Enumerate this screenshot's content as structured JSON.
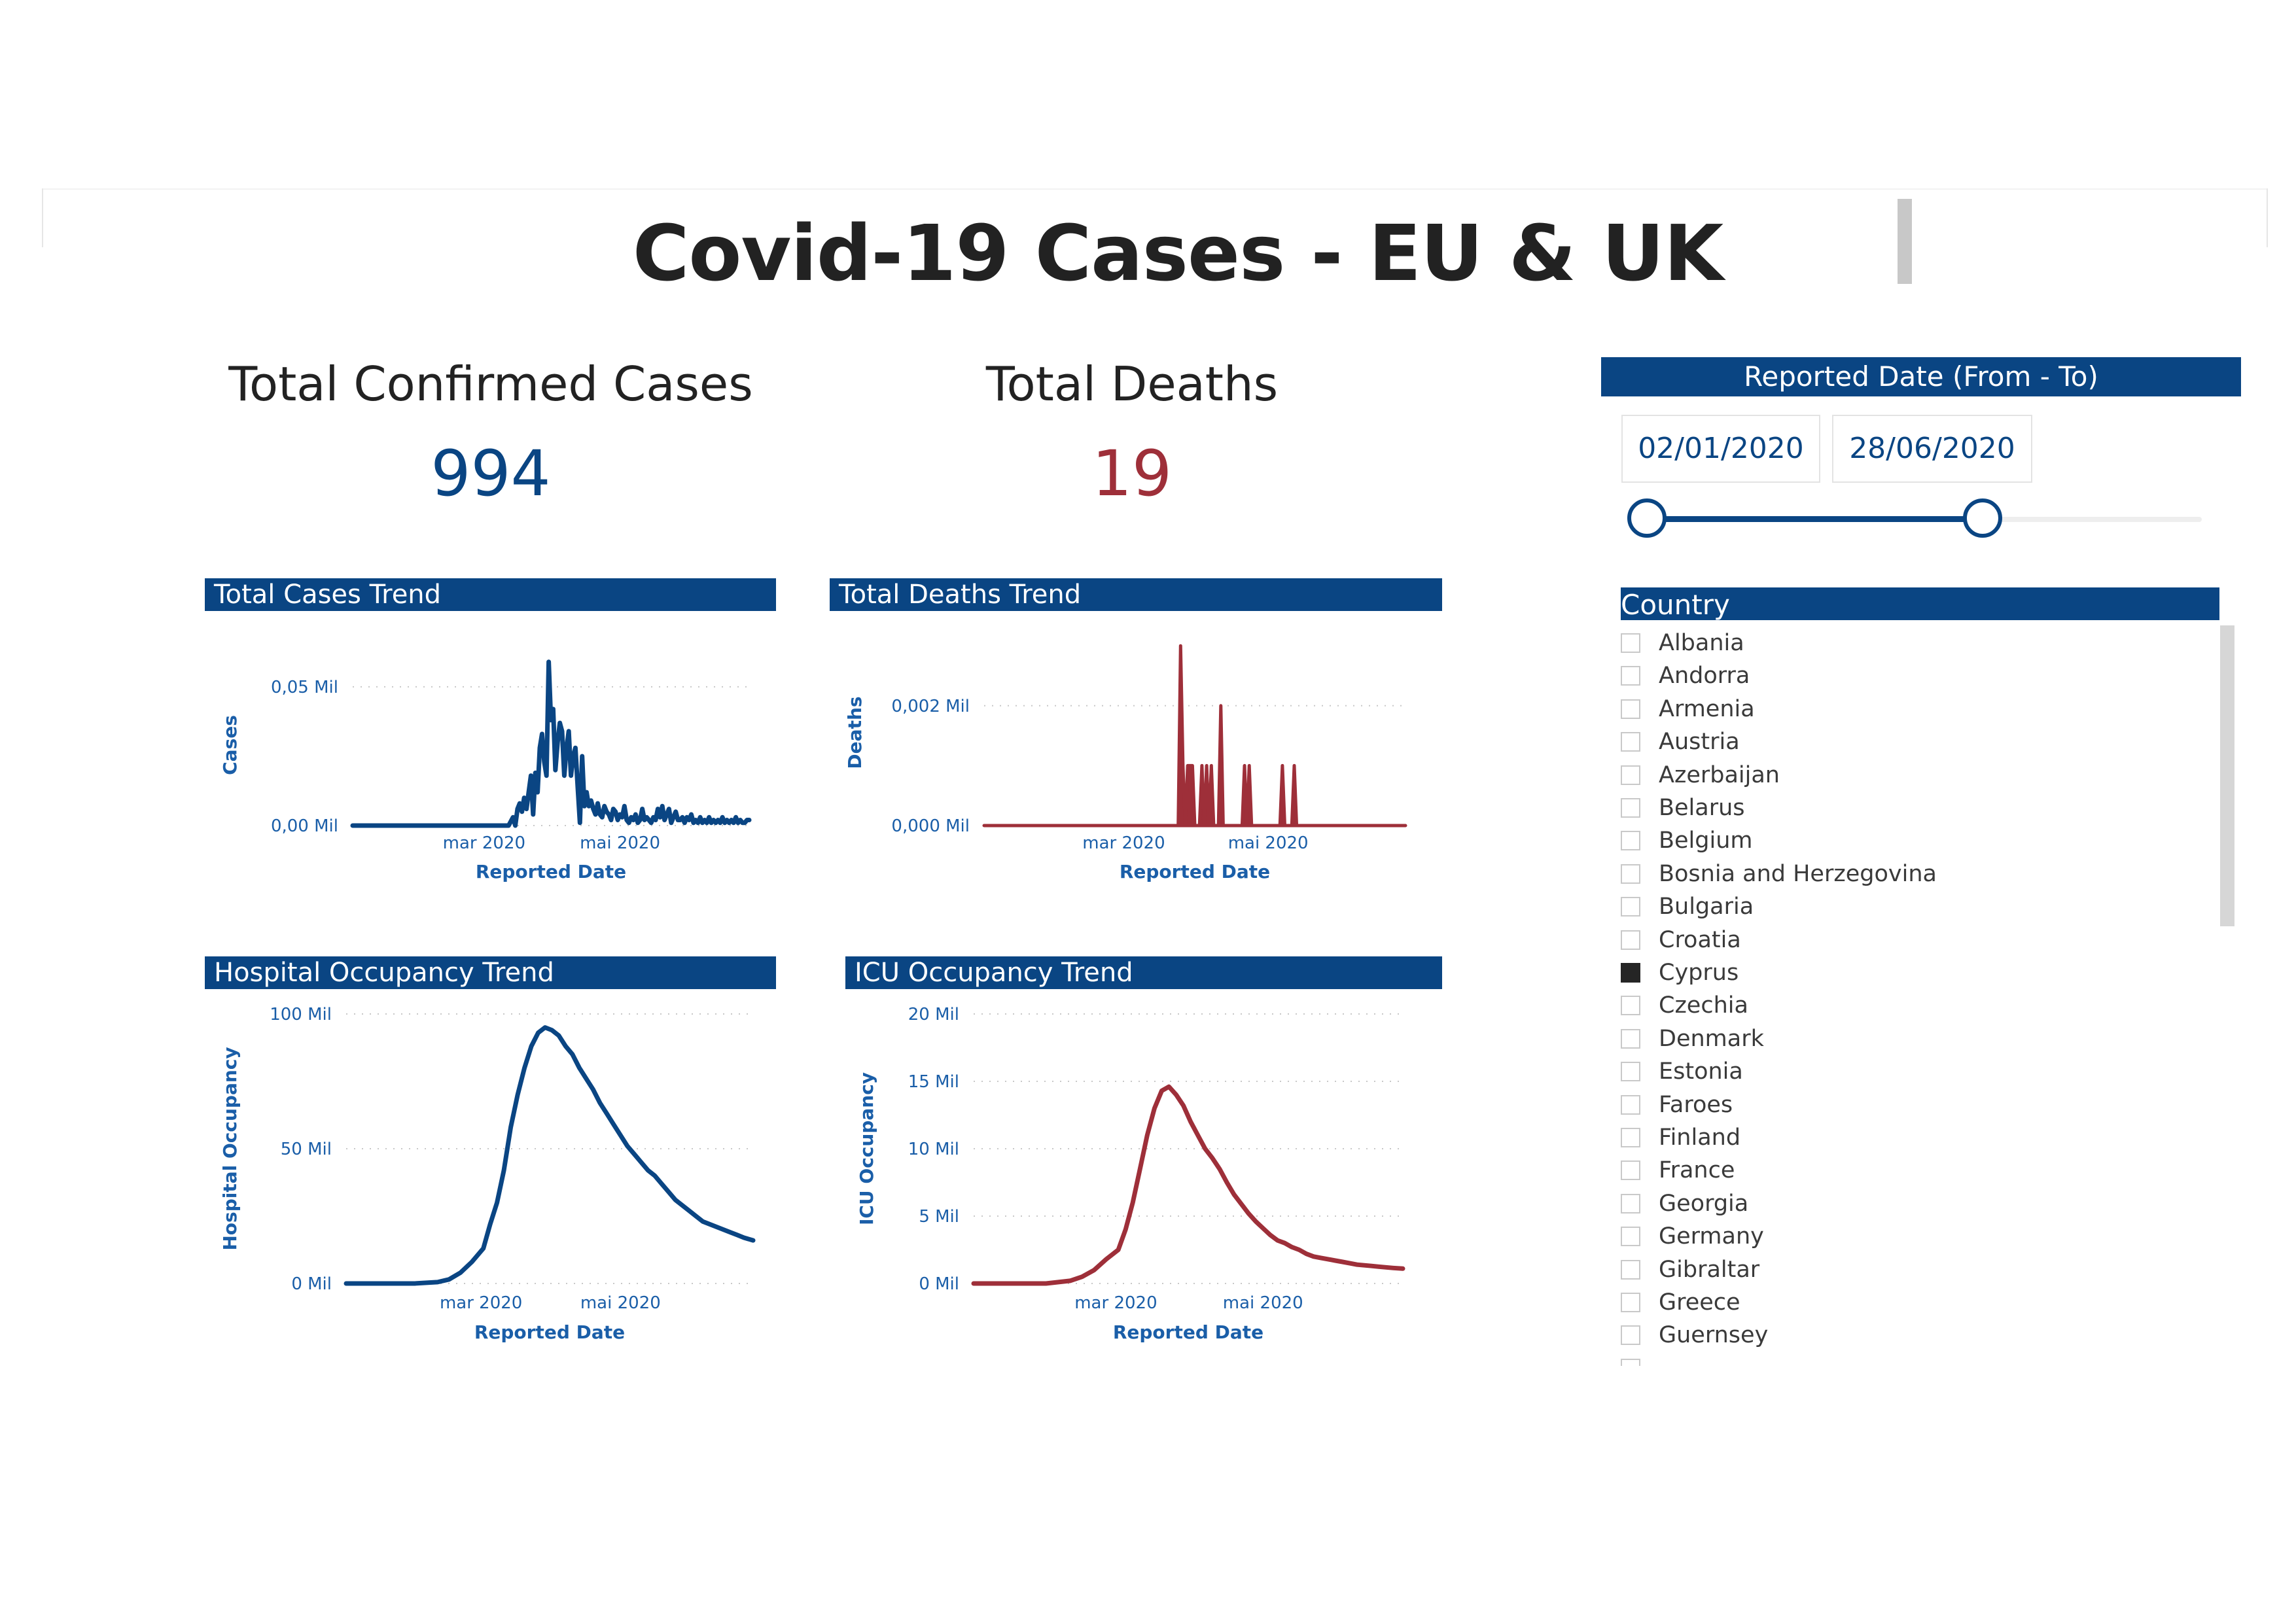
{
  "dashboard": {
    "title": "Covid-19 Cases - EU & UK"
  },
  "kpis": {
    "cases_label": "Total Confirmed Cases",
    "cases_value": "994",
    "deaths_label": "Total Deaths",
    "deaths_value": "19"
  },
  "colors": {
    "primary_blue": "#0a4583",
    "death_red": "#9e2f39",
    "axis_blue": "#1a5ea8"
  },
  "date_slicer": {
    "header": "Reported Date (From - To)",
    "from": "02/01/2020",
    "to": "28/06/2020",
    "range_fraction": [
      0.0,
      0.6
    ]
  },
  "country_slicer": {
    "header": "Country",
    "items": [
      {
        "label": "Albania",
        "checked": false
      },
      {
        "label": "Andorra",
        "checked": false
      },
      {
        "label": "Armenia",
        "checked": false
      },
      {
        "label": "Austria",
        "checked": false
      },
      {
        "label": "Azerbaijan",
        "checked": false
      },
      {
        "label": "Belarus",
        "checked": false
      },
      {
        "label": "Belgium",
        "checked": false
      },
      {
        "label": "Bosnia and Herzegovina",
        "checked": false
      },
      {
        "label": "Bulgaria",
        "checked": false
      },
      {
        "label": "Croatia",
        "checked": false
      },
      {
        "label": "Cyprus",
        "checked": true
      },
      {
        "label": "Czechia",
        "checked": false
      },
      {
        "label": "Denmark",
        "checked": false
      },
      {
        "label": "Estonia",
        "checked": false
      },
      {
        "label": "Faroes",
        "checked": false
      },
      {
        "label": "Finland",
        "checked": false
      },
      {
        "label": "France",
        "checked": false
      },
      {
        "label": "Georgia",
        "checked": false
      },
      {
        "label": "Germany",
        "checked": false
      },
      {
        "label": "Gibraltar",
        "checked": false
      },
      {
        "label": "Greece",
        "checked": false
      },
      {
        "label": "Guernsey",
        "checked": false
      }
    ]
  },
  "chart_data": [
    {
      "id": "cases",
      "type": "line",
      "title": "Total Cases Trend",
      "xlabel": "Reported Date",
      "ylabel": "Cases",
      "x_tick_labels": [
        "mar 2020",
        "mai 2020"
      ],
      "y_tick_labels": [
        "0,00 Mil",
        "0,05 Mil"
      ],
      "y_ticks": [
        0,
        0.05
      ],
      "ylim": [
        0,
        0.058
      ],
      "x_range_days": [
        0,
        178
      ],
      "x_ticks_days": [
        59,
        120
      ],
      "color": "#0a4583",
      "series": [
        {
          "x": [
            0,
            70,
            72,
            73,
            74,
            75,
            76,
            77,
            78,
            79,
            80,
            81,
            82,
            83,
            84,
            85,
            86,
            87,
            88,
            89,
            90,
            91,
            92,
            93,
            94,
            95,
            96,
            97,
            98,
            99,
            100,
            101,
            102,
            103,
            104,
            105,
            106,
            107,
            108,
            109,
            110,
            111,
            112,
            113,
            114,
            115,
            116,
            117,
            118,
            119,
            120,
            121,
            122,
            123,
            124,
            125,
            126,
            127,
            128,
            129,
            130,
            131,
            132,
            133,
            134,
            135,
            136,
            137,
            138,
            139,
            140,
            141,
            142,
            143,
            144,
            145,
            146,
            147,
            148,
            149,
            150,
            151,
            152,
            153,
            154,
            155,
            156,
            157,
            158,
            159,
            160,
            161,
            162,
            163,
            164,
            165,
            166,
            167,
            168,
            169,
            170,
            171,
            172,
            173,
            174,
            175,
            176,
            177,
            178
          ],
          "values": [
            0,
            0,
            0.003,
            0,
            0.006,
            0.008,
            0.005,
            0.01,
            0.006,
            0.012,
            0.018,
            0.004,
            0.019,
            0.012,
            0.028,
            0.033,
            0.023,
            0.018,
            0.059,
            0.038,
            0.042,
            0.02,
            0.03,
            0.037,
            0.034,
            0.018,
            0.028,
            0.034,
            0.018,
            0.025,
            0.028,
            0.014,
            0.001,
            0.025,
            0.007,
            0.012,
            0.007,
            0.009,
            0.006,
            0.004,
            0.008,
            0.004,
            0.003,
            0.007,
            0.005,
            0.004,
            0.002,
            0.006,
            0.005,
            0.002,
            0.004,
            0.003,
            0.007,
            0.002,
            0.001,
            0.003,
            0.002,
            0.004,
            0.001,
            0.002,
            0.006,
            0.002,
            0.003,
            0.002,
            0.001,
            0.003,
            0.002,
            0.006,
            0.003,
            0.007,
            0.002,
            0.004,
            0.006,
            0.001,
            0.003,
            0.005,
            0.002,
            0.002,
            0.003,
            0.001,
            0.003,
            0.002,
            0.004,
            0.001,
            0.002,
            0.001,
            0.003,
            0.001,
            0.002,
            0.001,
            0.003,
            0.001,
            0.002,
            0.001,
            0.002,
            0.001,
            0.003,
            0.001,
            0.002,
            0.001,
            0.002,
            0.001,
            0.003,
            0.001,
            0.002,
            0.001,
            0.001,
            0.002,
            0.002
          ]
        }
      ]
    },
    {
      "id": "deaths",
      "type": "area",
      "title": "Total Deaths Trend",
      "xlabel": "Reported Date",
      "ylabel": "Deaths",
      "x_tick_labels": [
        "mar 2020",
        "mai 2020"
      ],
      "y_tick_labels": [
        "0,000 Mil",
        "0,002 Mil"
      ],
      "y_ticks": [
        0,
        0.002
      ],
      "ylim": [
        0,
        0.0031
      ],
      "x_range_days": [
        0,
        178
      ],
      "x_ticks_days": [
        59,
        120
      ],
      "color": "#9e2f39",
      "series": [
        {
          "x": [
            0,
            82,
            83,
            84,
            85,
            86,
            87,
            88,
            89,
            90,
            91,
            92,
            93,
            94,
            95,
            96,
            97,
            98,
            99,
            100,
            101,
            102,
            103,
            104,
            105,
            106,
            107,
            108,
            109,
            110,
            111,
            112,
            113,
            114,
            115,
            116,
            117,
            118,
            119,
            120,
            121,
            122,
            123,
            124,
            125,
            126,
            127,
            128,
            129,
            130,
            131,
            132,
            133,
            134,
            135,
            136,
            137,
            138,
            139,
            140,
            141,
            142,
            143,
            144,
            145,
            146,
            147,
            148,
            149,
            150,
            151,
            152,
            153,
            154,
            155,
            156,
            157,
            158,
            159,
            160,
            161,
            162,
            163,
            164,
            165,
            166,
            167,
            168,
            169,
            170,
            171,
            172,
            173,
            174,
            175,
            176,
            177,
            178
          ],
          "values": [
            0,
            0,
            0.003,
            0.001,
            0,
            0.001,
            0.001,
            0.001,
            0,
            0,
            0,
            0.001,
            0,
            0.001,
            0,
            0.001,
            0,
            0,
            0,
            0.002,
            0,
            0,
            0,
            0,
            0,
            0,
            0,
            0,
            0,
            0.001,
            0,
            0.001,
            0,
            0,
            0,
            0,
            0,
            0,
            0,
            0,
            0,
            0,
            0,
            0,
            0,
            0.001,
            0,
            0,
            0,
            0,
            0.001,
            0,
            0,
            0,
            0,
            0,
            0,
            0,
            0,
            0,
            0,
            0,
            0,
            0,
            0,
            0,
            0,
            0,
            0,
            0,
            0,
            0,
            0,
            0,
            0,
            0,
            0,
            0,
            0,
            0,
            0,
            0,
            0,
            0,
            0,
            0,
            0,
            0,
            0,
            0,
            0,
            0,
            0,
            0,
            0,
            0,
            0,
            0
          ]
        }
      ]
    },
    {
      "id": "hospital",
      "type": "line",
      "title": "Hospital Occupancy Trend",
      "xlabel": "Reported Date",
      "ylabel": "Hospital Occupancy",
      "x_tick_labels": [
        "mar 2020",
        "mai 2020"
      ],
      "y_tick_labels": [
        "0 Mil",
        "50 Mil",
        "100 Mil"
      ],
      "y_ticks": [
        0,
        50,
        100
      ],
      "ylim": [
        0,
        100
      ],
      "x_range_days": [
        0,
        178
      ],
      "x_ticks_days": [
        59,
        120
      ],
      "color": "#0a4583",
      "series": [
        {
          "x": [
            0,
            30,
            40,
            45,
            50,
            55,
            60,
            63,
            66,
            69,
            72,
            75,
            78,
            81,
            84,
            87,
            90,
            93,
            96,
            99,
            102,
            105,
            108,
            111,
            114,
            117,
            120,
            123,
            126,
            129,
            132,
            135,
            138,
            141,
            144,
            147,
            150,
            153,
            156,
            159,
            162,
            165,
            168,
            171,
            174,
            178
          ],
          "values": [
            0,
            0,
            0.5,
            1.5,
            4,
            8,
            13,
            22,
            30,
            42,
            58,
            70,
            80,
            88,
            93,
            95,
            94,
            92,
            88,
            85,
            80,
            76,
            72,
            67,
            63,
            59,
            55,
            51,
            48,
            45,
            42,
            40,
            37,
            34,
            31,
            29,
            27,
            25,
            23,
            22,
            21,
            20,
            19,
            18,
            17,
            16
          ]
        }
      ]
    },
    {
      "id": "icu",
      "type": "line",
      "title": "ICU Occupancy Trend",
      "xlabel": "Reported Date",
      "ylabel": "ICU Occupancy",
      "x_tick_labels": [
        "mar 2020",
        "mai 2020"
      ],
      "y_tick_labels": [
        "0 Mil",
        "5 Mil",
        "10 Mil",
        "15 Mil",
        "20 Mil"
      ],
      "y_ticks": [
        0,
        5,
        10,
        15,
        20
      ],
      "ylim": [
        0,
        20
      ],
      "x_range_days": [
        0,
        178
      ],
      "x_ticks_days": [
        59,
        120
      ],
      "color": "#9e2f39",
      "series": [
        {
          "x": [
            0,
            30,
            40,
            45,
            50,
            55,
            60,
            63,
            66,
            69,
            72,
            75,
            78,
            81,
            84,
            87,
            90,
            93,
            96,
            99,
            102,
            105,
            108,
            111,
            114,
            117,
            120,
            123,
            126,
            129,
            132,
            135,
            138,
            141,
            144,
            147,
            150,
            153,
            156,
            159,
            162,
            165,
            168,
            171,
            174,
            178
          ],
          "values": [
            0,
            0,
            0.2,
            0.5,
            1,
            1.8,
            2.5,
            4,
            6,
            8.5,
            11,
            13,
            14.3,
            14.6,
            14,
            13.2,
            12,
            11,
            10,
            9.3,
            8.5,
            7.5,
            6.6,
            5.9,
            5.2,
            4.6,
            4.1,
            3.6,
            3.2,
            3.0,
            2.7,
            2.5,
            2.2,
            2.0,
            1.9,
            1.8,
            1.7,
            1.6,
            1.5,
            1.4,
            1.35,
            1.3,
            1.25,
            1.2,
            1.15,
            1.1
          ]
        }
      ]
    }
  ]
}
